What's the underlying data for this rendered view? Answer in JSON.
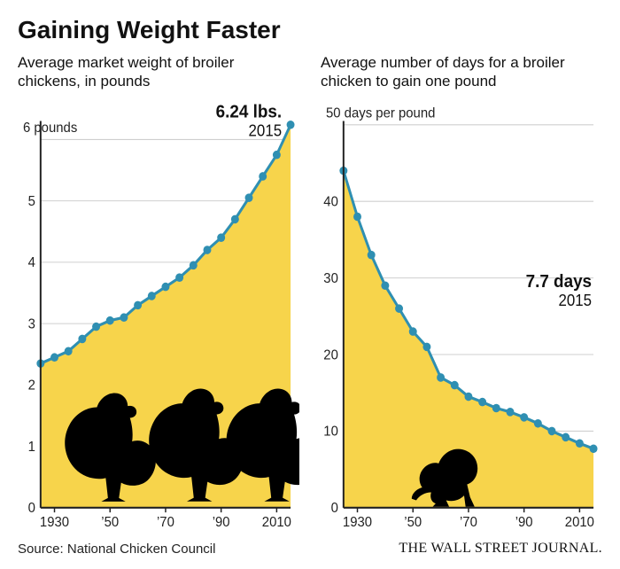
{
  "title": "Gaining Weight Faster",
  "title_fontsize": 28,
  "source": "Source: National Chicken Council",
  "source_fontsize": 15,
  "credit": "THE WALL STREET JOURNAL.",
  "credit_fontsize": 16,
  "colors": {
    "background": "#ffffff",
    "text": "#111111",
    "grid": "#cfcfcf",
    "axis": "#222222",
    "fill": "#f7d44b",
    "line": "#2f8fb2",
    "marker": "#2f8fb2",
    "silhouette": "#000000"
  },
  "left_chart": {
    "type": "area-line-markers",
    "subtitle": "Average market weight of broiler chickens, in pounds",
    "subtitle_fontsize": 17,
    "top_axis_label": "6 pounds",
    "callout_value": "6.24 lbs.",
    "callout_year": "2015",
    "callout_fontsize_val": 19,
    "callout_fontsize_year": 17,
    "xlim": [
      1925,
      2015
    ],
    "ylim": [
      0,
      6.24
    ],
    "yticks": [
      0,
      1,
      2,
      3,
      4,
      5,
      6
    ],
    "xticks": [
      1930,
      1950,
      1970,
      1990,
      2010
    ],
    "xtick_labels": [
      "1930",
      "’50",
      "’70",
      "’90",
      "2010"
    ],
    "tick_fontsize": 15,
    "line_width": 3,
    "marker_radius": 4.5,
    "series": {
      "x": [
        1925,
        1930,
        1935,
        1940,
        1945,
        1950,
        1955,
        1960,
        1965,
        1970,
        1975,
        1980,
        1985,
        1990,
        1995,
        2000,
        2005,
        2010,
        2015
      ],
      "y": [
        2.35,
        2.45,
        2.55,
        2.75,
        2.95,
        3.05,
        3.1,
        3.3,
        3.45,
        3.6,
        3.75,
        3.95,
        4.2,
        4.4,
        4.7,
        5.05,
        5.4,
        5.75,
        6.24
      ]
    }
  },
  "right_chart": {
    "type": "area-line-markers",
    "subtitle": "Average number of days for a broiler chicken to gain one pound",
    "subtitle_fontsize": 17,
    "top_axis_label": "50 days per pound",
    "callout_value": "7.7 days",
    "callout_year": "2015",
    "callout_fontsize_val": 19,
    "callout_fontsize_year": 17,
    "xlim": [
      1925,
      2015
    ],
    "ylim": [
      0,
      50
    ],
    "yticks": [
      0,
      10,
      20,
      30,
      40,
      50
    ],
    "xticks": [
      1930,
      1950,
      1970,
      1990,
      2010
    ],
    "xtick_labels": [
      "1930",
      "’50",
      "’70",
      "’90",
      "2010"
    ],
    "tick_fontsize": 15,
    "line_width": 3,
    "marker_radius": 4.5,
    "series": {
      "x": [
        1925,
        1930,
        1935,
        1940,
        1945,
        1950,
        1955,
        1960,
        1965,
        1970,
        1975,
        1980,
        1985,
        1990,
        1995,
        2000,
        2005,
        2010,
        2015
      ],
      "y": [
        44.0,
        38.0,
        33.0,
        29.0,
        26.0,
        23.0,
        21.0,
        17.0,
        16.0,
        14.5,
        13.8,
        13.0,
        12.5,
        11.8,
        11.0,
        10.0,
        9.2,
        8.4,
        7.7
      ]
    }
  }
}
